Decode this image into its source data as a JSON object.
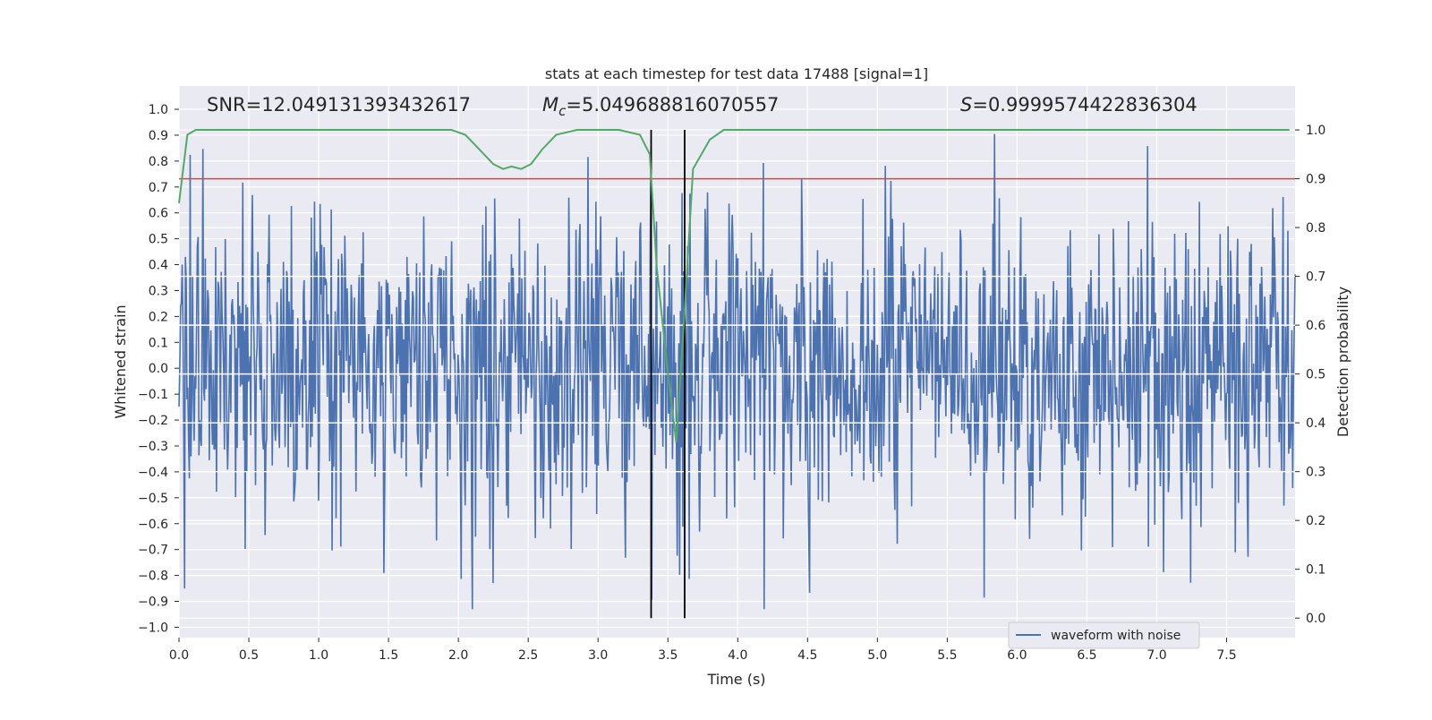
{
  "chart_data": {
    "type": "line",
    "title": "stats at each timestep for test data 17488 [signal=1]",
    "xlabel": "Time (s)",
    "ylabel_left": "Whitened strain",
    "ylabel_right": "Detection probability",
    "xlim": [
      0.0,
      7.99
    ],
    "ylim_left": [
      -1.04,
      1.09
    ],
    "ylim_right": [
      -0.04,
      1.09
    ],
    "x_ticks": [
      "0.0",
      "0.5",
      "1.0",
      "1.5",
      "2.0",
      "2.5",
      "3.0",
      "3.5",
      "4.0",
      "4.5",
      "5.0",
      "5.5",
      "6.0",
      "6.5",
      "7.0",
      "7.5"
    ],
    "y_left_ticks": [
      "1.0",
      "0.9",
      "0.8",
      "0.7",
      "0.6",
      "0.5",
      "0.4",
      "0.3",
      "0.2",
      "0.1",
      "0.0",
      "−0.1",
      "−0.2",
      "−0.3",
      "−0.4",
      "−0.5",
      "−0.6",
      "−0.7",
      "−0.8",
      "−0.9",
      "−1.0"
    ],
    "y_right_ticks": [
      "1.0",
      "0.9",
      "0.8",
      "0.7",
      "0.6",
      "0.5",
      "0.4",
      "0.3",
      "0.2",
      "0.1",
      "0.0"
    ],
    "annotations": {
      "snr": "SNR=12.049131393432617",
      "mc_symbol": "M",
      "mc_subscript": "c",
      "mc_value": "=5.049688816070557",
      "s_symbol": "S",
      "s_value": "=0.9999574422836304"
    },
    "threshold": {
      "axis": "right",
      "value": 0.9,
      "color": "#c44e52"
    },
    "event_window": {
      "x": [
        3.38,
        3.62
      ],
      "color": "#000000"
    },
    "series": [
      {
        "name": "waveform with noise",
        "axis": "left",
        "color": "#4c72b0",
        "noise_envelope": [
          -0.93,
          1.0
        ]
      },
      {
        "axis": "right",
        "color": "#55a868",
        "x": [
          0.0,
          0.06,
          0.12,
          0.25,
          0.5,
          0.75,
          1.0,
          1.25,
          1.5,
          1.75,
          1.95,
          2.05,
          2.15,
          2.25,
          2.32,
          2.38,
          2.45,
          2.52,
          2.6,
          2.7,
          2.85,
          3.0,
          3.15,
          3.3,
          3.37,
          3.42,
          3.5,
          3.56,
          3.62,
          3.68,
          3.8,
          3.9,
          4.0,
          4.5,
          5.0,
          5.5,
          6.0,
          6.5,
          7.0,
          7.5,
          7.95
        ],
        "y": [
          0.85,
          0.99,
          1.0,
          1.0,
          1.0,
          1.0,
          1.0,
          1.0,
          1.0,
          1.0,
          1.0,
          0.99,
          0.96,
          0.93,
          0.92,
          0.925,
          0.92,
          0.93,
          0.96,
          0.99,
          1.0,
          1.0,
          1.0,
          0.99,
          0.95,
          0.72,
          0.5,
          0.36,
          0.63,
          0.92,
          0.98,
          1.0,
          1.0,
          1.0,
          1.0,
          1.0,
          1.0,
          1.0,
          1.0,
          1.0,
          1.0
        ]
      }
    ],
    "legend": {
      "location": "lower-right",
      "label": "waveform with noise"
    },
    "grid": true
  }
}
